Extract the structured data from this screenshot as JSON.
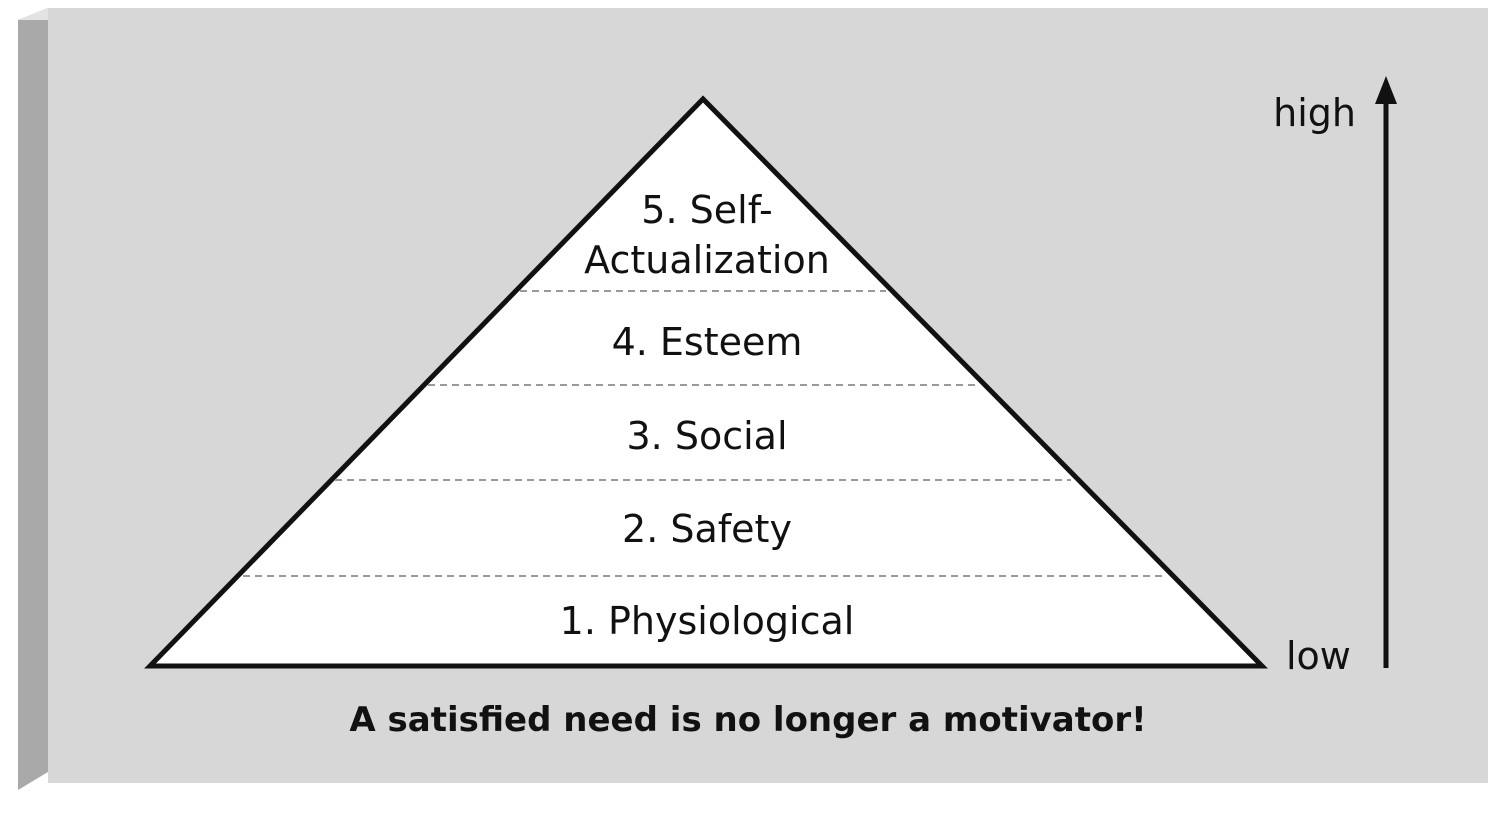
{
  "diagram": {
    "levels": [
      {
        "label_line1": "5. Self-",
        "label_line2": "Actualization"
      },
      {
        "label": "4. Esteem"
      },
      {
        "label": "3. Social"
      },
      {
        "label": "2. Safety"
      },
      {
        "label": "1. Physiological"
      }
    ],
    "axis": {
      "high_label": "high",
      "low_label": "low"
    },
    "caption": "A satisfied need is no longer a motivator!"
  },
  "colors": {
    "panel_face": "#d7d7d7",
    "panel_side": "#a9a9a9",
    "panel_top": "#e3e3e3",
    "pyramid_fill": "#ffffff",
    "outline": "#111111",
    "divider": "#9a9a9a"
  }
}
